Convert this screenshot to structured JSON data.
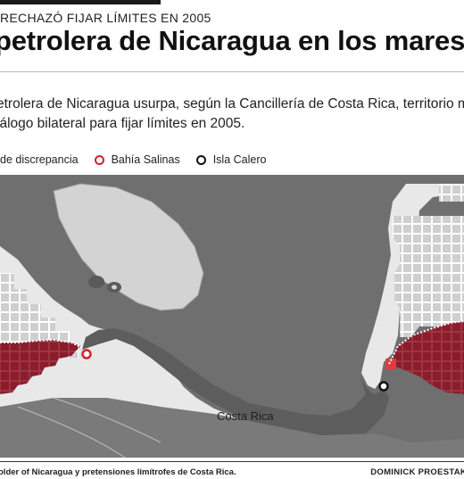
{
  "kicker": "RECHAZÓ FIJAR LÍMITES EN 2005",
  "headline": "petrolera de Nicaragua en los mares",
  "deck": [
    "etrolera de Nicaragua usurpa, según la Cancillería de Costa Rica, territorio mar",
    "iálogo bilateral para fijar límites en 2005."
  ],
  "legend": {
    "zone_label": "de discrepancia",
    "items": [
      {
        "label": "Bahía Salinas",
        "color": "#d3222a",
        "icon": "red-ring-icon"
      },
      {
        "label": "Isla Calero",
        "color": "#111111",
        "icon": "black-ring-icon"
      }
    ]
  },
  "map": {
    "country_label": "Costa Rica",
    "colors": {
      "ocean": "#e6e6e6",
      "land": "#6d6d6d",
      "lake": "#d4d4d4",
      "dispute_zone": "#8a1c2b",
      "grid_blocks": "#c8c8c8"
    },
    "markers": [
      {
        "name": "Bahía Salinas",
        "color": "#d3222a"
      },
      {
        "name": "Isla Calero",
        "color": "#111111"
      }
    ]
  },
  "footer": {
    "credit": "older of Nicaragua y pretensiones limítrofes de Costa Rica.",
    "author": "DOMINICK PROESTAKI"
  }
}
